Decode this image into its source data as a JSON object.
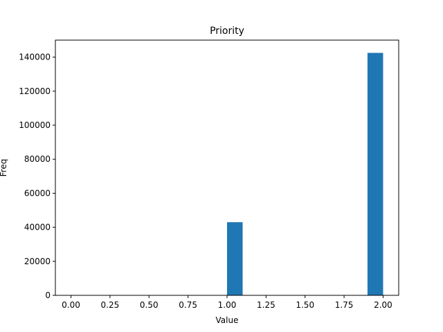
{
  "chart_data": {
    "type": "bar",
    "title": "Priority",
    "xlabel": "Value",
    "ylabel": "Freq",
    "xlim": [
      -0.1,
      2.1
    ],
    "ylim": [
      0,
      150000
    ],
    "xticks": [
      0.0,
      0.25,
      0.5,
      0.75,
      1.0,
      1.25,
      1.5,
      1.75,
      2.0
    ],
    "xtick_labels": [
      "0.00",
      "0.25",
      "0.50",
      "0.75",
      "1.00",
      "1.25",
      "1.50",
      "1.75",
      "2.00"
    ],
    "yticks": [
      0,
      20000,
      40000,
      60000,
      80000,
      100000,
      120000,
      140000
    ],
    "ytick_labels": [
      "0",
      "20000",
      "40000",
      "60000",
      "80000",
      "100000",
      "120000",
      "140000"
    ],
    "bin_width": 0.1,
    "bins": [
      {
        "start": 1.0,
        "end": 1.1,
        "count": 43000
      },
      {
        "start": 1.9,
        "end": 2.0,
        "count": 142500
      }
    ],
    "bar_color": "#1f77b4",
    "grid": false,
    "legend": "none"
  }
}
